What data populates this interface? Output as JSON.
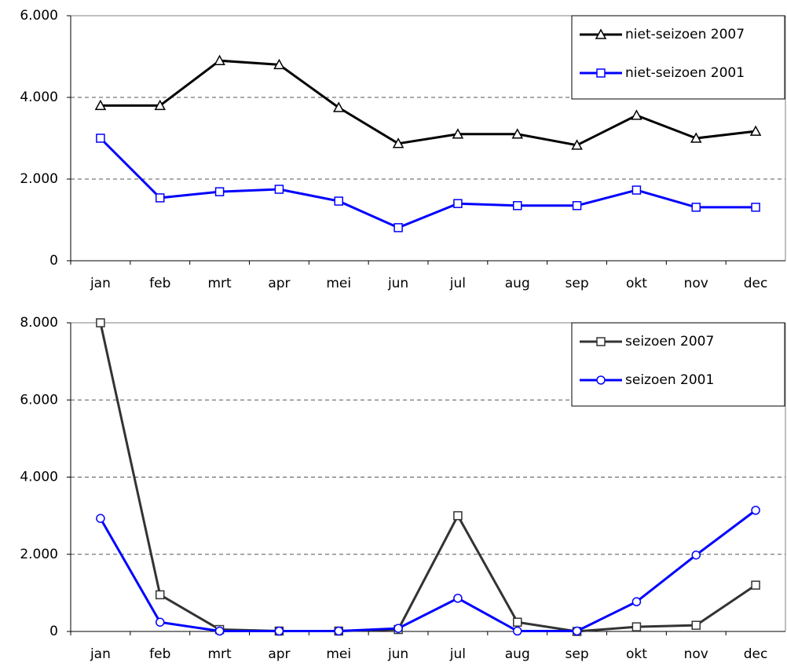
{
  "chart_data": [
    {
      "type": "line",
      "categories": [
        "jan",
        "feb",
        "mrt",
        "apr",
        "mei",
        "jun",
        "jul",
        "aug",
        "sep",
        "okt",
        "nov",
        "dec"
      ],
      "series": [
        {
          "name": "niet-seizoen 2007",
          "color": "#000000",
          "marker": "triangle",
          "values": [
            3800,
            3800,
            4900,
            4800,
            3750,
            2870,
            3100,
            3100,
            2830,
            3560,
            3000,
            3170
          ]
        },
        {
          "name": "niet-seizoen 2001",
          "color": "#0000ff",
          "marker": "square",
          "values": [
            3000,
            1540,
            1690,
            1750,
            1460,
            810,
            1400,
            1350,
            1350,
            1730,
            1310,
            1310
          ]
        }
      ],
      "ylim": [
        0,
        6000
      ],
      "yticks": [
        0,
        {
          "value": 2000,
          "label": "2.000"
        },
        {
          "value": 4000,
          "label": "4.000"
        },
        {
          "value": 6000,
          "label": "6.000"
        }
      ],
      "grid": true,
      "legend": "top-right"
    },
    {
      "type": "line",
      "categories": [
        "jan",
        "feb",
        "mrt",
        "apr",
        "mei",
        "jun",
        "jul",
        "aug",
        "sep",
        "okt",
        "nov",
        "dec"
      ],
      "series": [
        {
          "name": "seizoen 2007",
          "color": "#333333",
          "marker": "square",
          "values": [
            8000,
            950,
            50,
            10,
            10,
            50,
            3000,
            240,
            0,
            120,
            160,
            1200
          ]
        },
        {
          "name": "seizoen 2001",
          "color": "#0000ff",
          "marker": "circle",
          "values": [
            2930,
            240,
            10,
            10,
            10,
            80,
            860,
            10,
            10,
            770,
            1980,
            3140
          ]
        }
      ],
      "ylim": [
        0,
        8000
      ],
      "yticks": [
        0,
        {
          "value": 2000,
          "label": "2.000"
        },
        {
          "value": 4000,
          "label": "4.000"
        },
        {
          "value": 6000,
          "label": "6.000"
        },
        {
          "value": 8000,
          "label": "8.000"
        }
      ],
      "grid": true,
      "legend": "top-right"
    }
  ]
}
